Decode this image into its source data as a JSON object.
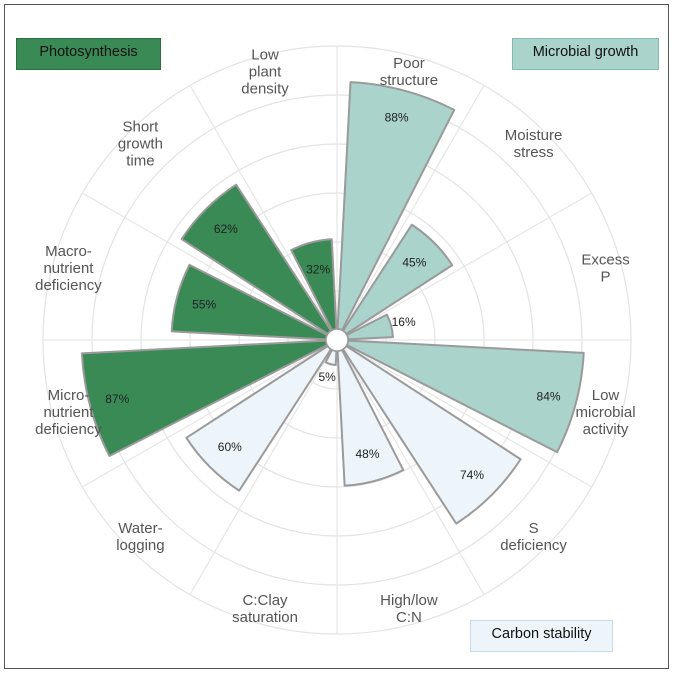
{
  "chart_data": {
    "type": "polar-bar",
    "groups": [
      {
        "name": "Photosynthesis",
        "color": "#3a8a55"
      },
      {
        "name": "Microbial growth",
        "color": "#a9d3cb"
      },
      {
        "name": "Carbon stability",
        "color": "#edf5fb"
      }
    ],
    "categories": [
      {
        "label": [
          "Poor",
          "structure"
        ],
        "value": 88,
        "pct_label": "88%",
        "group": 1
      },
      {
        "label": [
          "Moisture",
          "stress"
        ],
        "value": 45,
        "pct_label": "45%",
        "group": 1
      },
      {
        "label": [
          "Excess",
          "P"
        ],
        "value": 16,
        "pct_label": "16%",
        "group": 1
      },
      {
        "label": [
          "Low",
          "microbial",
          "activity"
        ],
        "value": 84,
        "pct_label": "84%",
        "group": 1
      },
      {
        "label": [
          "S",
          "deficiency"
        ],
        "value": 74,
        "pct_label": "74%",
        "group": 2
      },
      {
        "label": [
          "High/low",
          "C:N"
        ],
        "value": 48,
        "pct_label": "48%",
        "group": 2
      },
      {
        "label": [
          "C:Clay",
          "saturation"
        ],
        "value": 5,
        "pct_label": "5%",
        "group": 2
      },
      {
        "label": [
          "Water-",
          "logging"
        ],
        "value": 60,
        "pct_label": "60%",
        "group": 2
      },
      {
        "label": [
          "Micro-",
          "nutrient",
          "deficiency"
        ],
        "value": 87,
        "pct_label": "87%",
        "group": 0
      },
      {
        "label": [
          "Macro-",
          "nutrient",
          "deficiency"
        ],
        "value": 55,
        "pct_label": "55%",
        "group": 0
      },
      {
        "label": [
          "Short",
          "growth",
          "time"
        ],
        "value": 62,
        "pct_label": "62%",
        "group": 0
      },
      {
        "label": [
          "Low",
          "plant",
          "density"
        ],
        "value": 32,
        "pct_label": "32%",
        "group": 0
      }
    ],
    "rmax": 100,
    "grid": true,
    "legend_placement": [
      "top-left",
      "top-right",
      "bottom-right"
    ]
  }
}
